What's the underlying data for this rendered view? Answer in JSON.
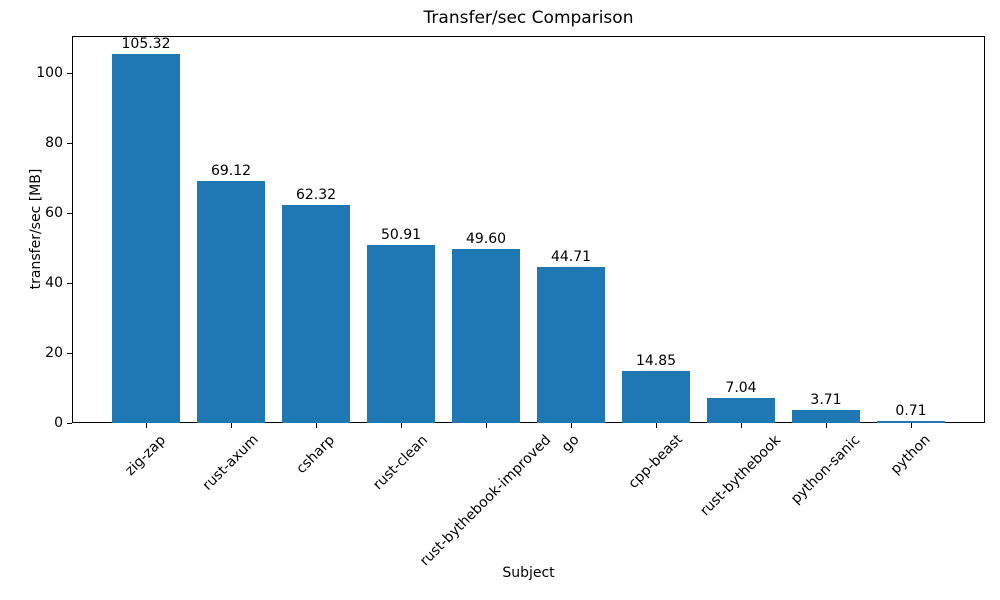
{
  "chart_data": {
    "type": "bar",
    "title": "Transfer/sec Comparison",
    "xlabel": "Subject",
    "ylabel": "transfer/sec [MB]",
    "categories": [
      "zig-zap",
      "rust-axum",
      "csharp",
      "rust-clean",
      "rust-bythebook-improved",
      "go",
      "cpp-beast",
      "rust-bythebook",
      "python-sanic",
      "python"
    ],
    "values": [
      105.32,
      69.12,
      62.32,
      50.91,
      49.6,
      44.71,
      14.85,
      7.04,
      3.71,
      0.71
    ],
    "value_labels": [
      "105.32",
      "69.12",
      "62.32",
      "50.91",
      "49.60",
      "44.71",
      "14.85",
      "7.04",
      "3.71",
      "0.71"
    ],
    "yticks": [
      0,
      20,
      40,
      60,
      80,
      100
    ],
    "ytick_labels": [
      "0",
      "20",
      "40",
      "60",
      "80",
      "100"
    ],
    "ylim": [
      0,
      110.6
    ],
    "x_tick_rotation_deg": 45,
    "bar_color": "#1f77b4",
    "text_color": "#000000",
    "background": "#ffffff",
    "grid": false,
    "legend_position": "none"
  }
}
